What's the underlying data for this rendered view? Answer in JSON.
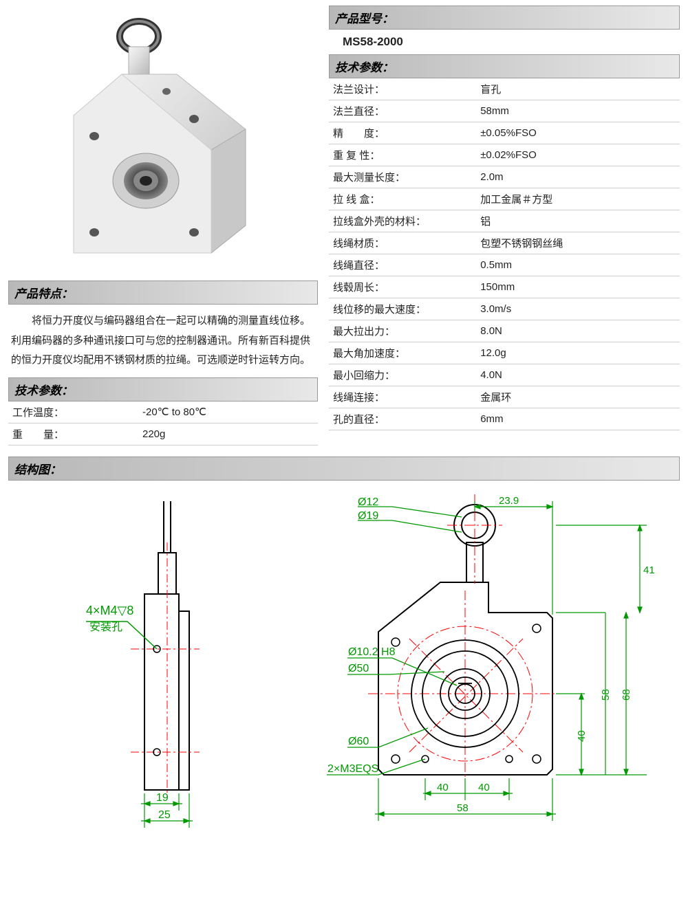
{
  "headers": {
    "model": "产品型号：",
    "specs": "技术参数：",
    "features": "产品特点：",
    "structure": "结构图："
  },
  "model_value": "MS58-2000",
  "features_text": "将恒力开度仪与编码器组合在一起可以精确的测量直线位移。利用编码器的多种通讯接口可与您的控制器通讯。所有新百科提供的恒力开度仪均配用不锈钢材质的拉绳。可选顺逆时针运转方向。",
  "left_specs": [
    {
      "label": "工作温度：",
      "value": "-20℃ to 80℃"
    },
    {
      "label": "重　　量：",
      "value": "220g"
    }
  ],
  "right_specs": [
    {
      "label": "法兰设计：",
      "value": "盲孔"
    },
    {
      "label": "法兰直径：",
      "value": "58mm"
    },
    {
      "label": "精　　度：",
      "value": "±0.05%FSO"
    },
    {
      "label": "重 复 性：",
      "value": "±0.02%FSO"
    },
    {
      "label": "最大测量长度：",
      "value": "2.0m"
    },
    {
      "label": "拉 线 盒：",
      "value": "加工金属＃方型"
    },
    {
      "label": "拉线盒外壳的材料：",
      "value": "铝"
    },
    {
      "label": "线绳材质：",
      "value": "包塑不锈钢钢丝绳"
    },
    {
      "label": "线绳直径：",
      "value": "0.5mm"
    },
    {
      "label": "线毂周长：",
      "value": "150mm"
    },
    {
      "label": "线位移的最大速度：",
      "value": "3.0m/s"
    },
    {
      "label": "最大拉出力：",
      "value": "8.0N"
    },
    {
      "label": "最大角加速度：",
      "value": "12.0g"
    },
    {
      "label": "最小回缩力：",
      "value": "4.0N"
    },
    {
      "label": "线绳连接：",
      "value": "金属环"
    },
    {
      "label": "孔的直径：",
      "value": "6mm"
    }
  ],
  "diagram": {
    "colors": {
      "outline": "#000000",
      "center": "#ff0000",
      "annot": "#009900",
      "dim": "#009900"
    },
    "left_labels": {
      "hole": "4×M4▽8",
      "hole_sub": "安装孔",
      "d19": "19",
      "d25": "25"
    },
    "right_labels": {
      "d12": "Ø12",
      "d19": "Ø19",
      "w239": "23.9",
      "h41": "41",
      "d102": "Ø10.2 H8",
      "d50": "Ø50",
      "d60": "Ø60",
      "m3": "2×M3EQS",
      "w40a": "40",
      "w40b": "40",
      "w58": "58",
      "h40": "40",
      "h58": "58",
      "h68": "68"
    }
  }
}
